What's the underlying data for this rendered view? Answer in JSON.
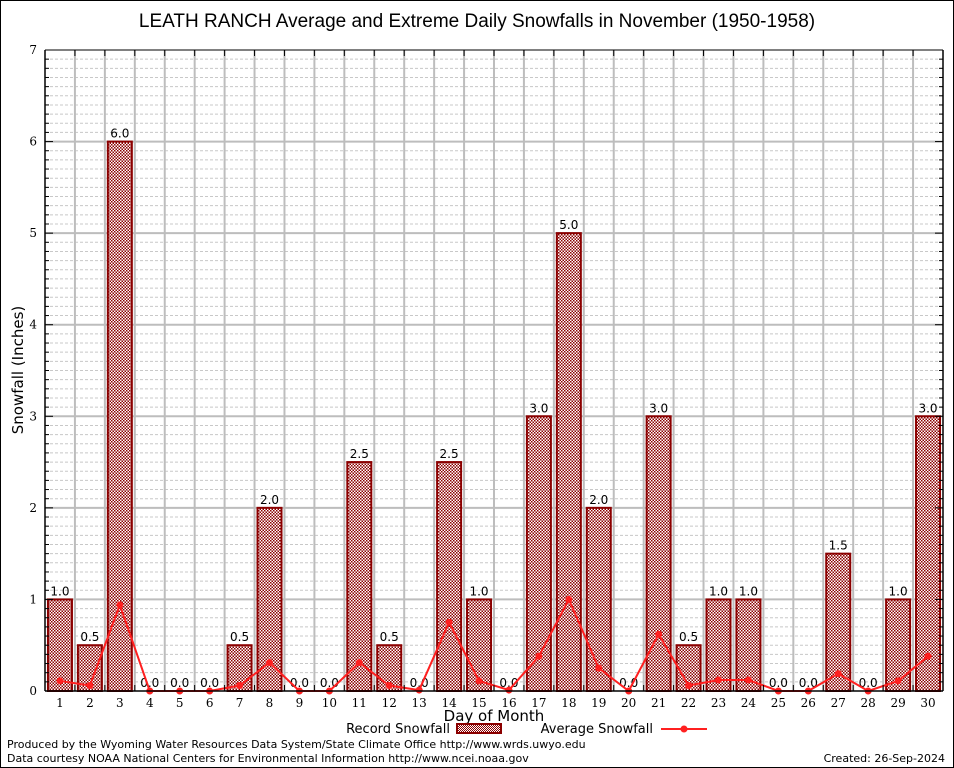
{
  "chart_data": {
    "type": "bar",
    "title": "LEATH RANCH Average and Extreme Daily Snowfalls in November (1950-1958)",
    "xlabel": "Day of Month",
    "ylabel": "Snowfall (Inches)",
    "ylim": [
      0,
      7
    ],
    "yticks": [
      "0",
      "1",
      "2",
      "3",
      "4",
      "5",
      "6",
      "7"
    ],
    "grid": true,
    "categories": [
      "1",
      "2",
      "3",
      "4",
      "5",
      "6",
      "7",
      "8",
      "9",
      "10",
      "11",
      "12",
      "13",
      "14",
      "15",
      "16",
      "17",
      "18",
      "19",
      "20",
      "21",
      "22",
      "23",
      "24",
      "25",
      "26",
      "27",
      "28",
      "29",
      "30"
    ],
    "series": [
      {
        "name": "Record Snowfall",
        "type": "bar",
        "values": [
          1.0,
          0.5,
          6.0,
          0.0,
          0.0,
          0.0,
          0.5,
          2.0,
          0.0,
          0.0,
          2.5,
          0.5,
          0.0,
          2.5,
          1.0,
          0.0,
          3.0,
          5.0,
          2.0,
          0.0,
          3.0,
          0.5,
          1.0,
          1.0,
          0.0,
          0.0,
          1.5,
          0.0,
          1.0,
          3.0
        ],
        "labels": [
          "1.0",
          "0.5",
          "6.0",
          "0.0",
          "0.0",
          "0.0",
          "0.5",
          "2.0",
          "0.0",
          "0.0",
          "2.5",
          "0.5",
          "0.0",
          "2.5",
          "1.0",
          "0.0",
          "3.0",
          "5.0",
          "2.0",
          "0.0",
          "3.0",
          "0.5",
          "1.0",
          "1.0",
          "0.0",
          "0.0",
          "1.5",
          "0.0",
          "1.0",
          "3.0"
        ],
        "color": "#8b0000",
        "fill": "#c89090"
      },
      {
        "name": "Average Snowfall",
        "type": "line",
        "values": [
          0.11,
          0.06,
          0.94,
          0.0,
          0.0,
          0.0,
          0.06,
          0.31,
          0.0,
          0.0,
          0.31,
          0.06,
          0.01,
          0.75,
          0.11,
          0.01,
          0.38,
          1.0,
          0.25,
          0.0,
          0.62,
          0.06,
          0.12,
          0.12,
          0.0,
          0.0,
          0.19,
          0.0,
          0.11,
          0.38
        ],
        "color": "#ff2020"
      }
    ],
    "legend": "bottom"
  },
  "footer": {
    "produced_by": "Produced by the Wyoming Water Resources Data System/State Climate Office http://www.wrds.uwyo.edu",
    "data_courtesy": "Data courtesy NOAA National Centers for Environmental Information http://www.ncei.noaa.gov",
    "created": "Created: 26-Sep-2024"
  }
}
